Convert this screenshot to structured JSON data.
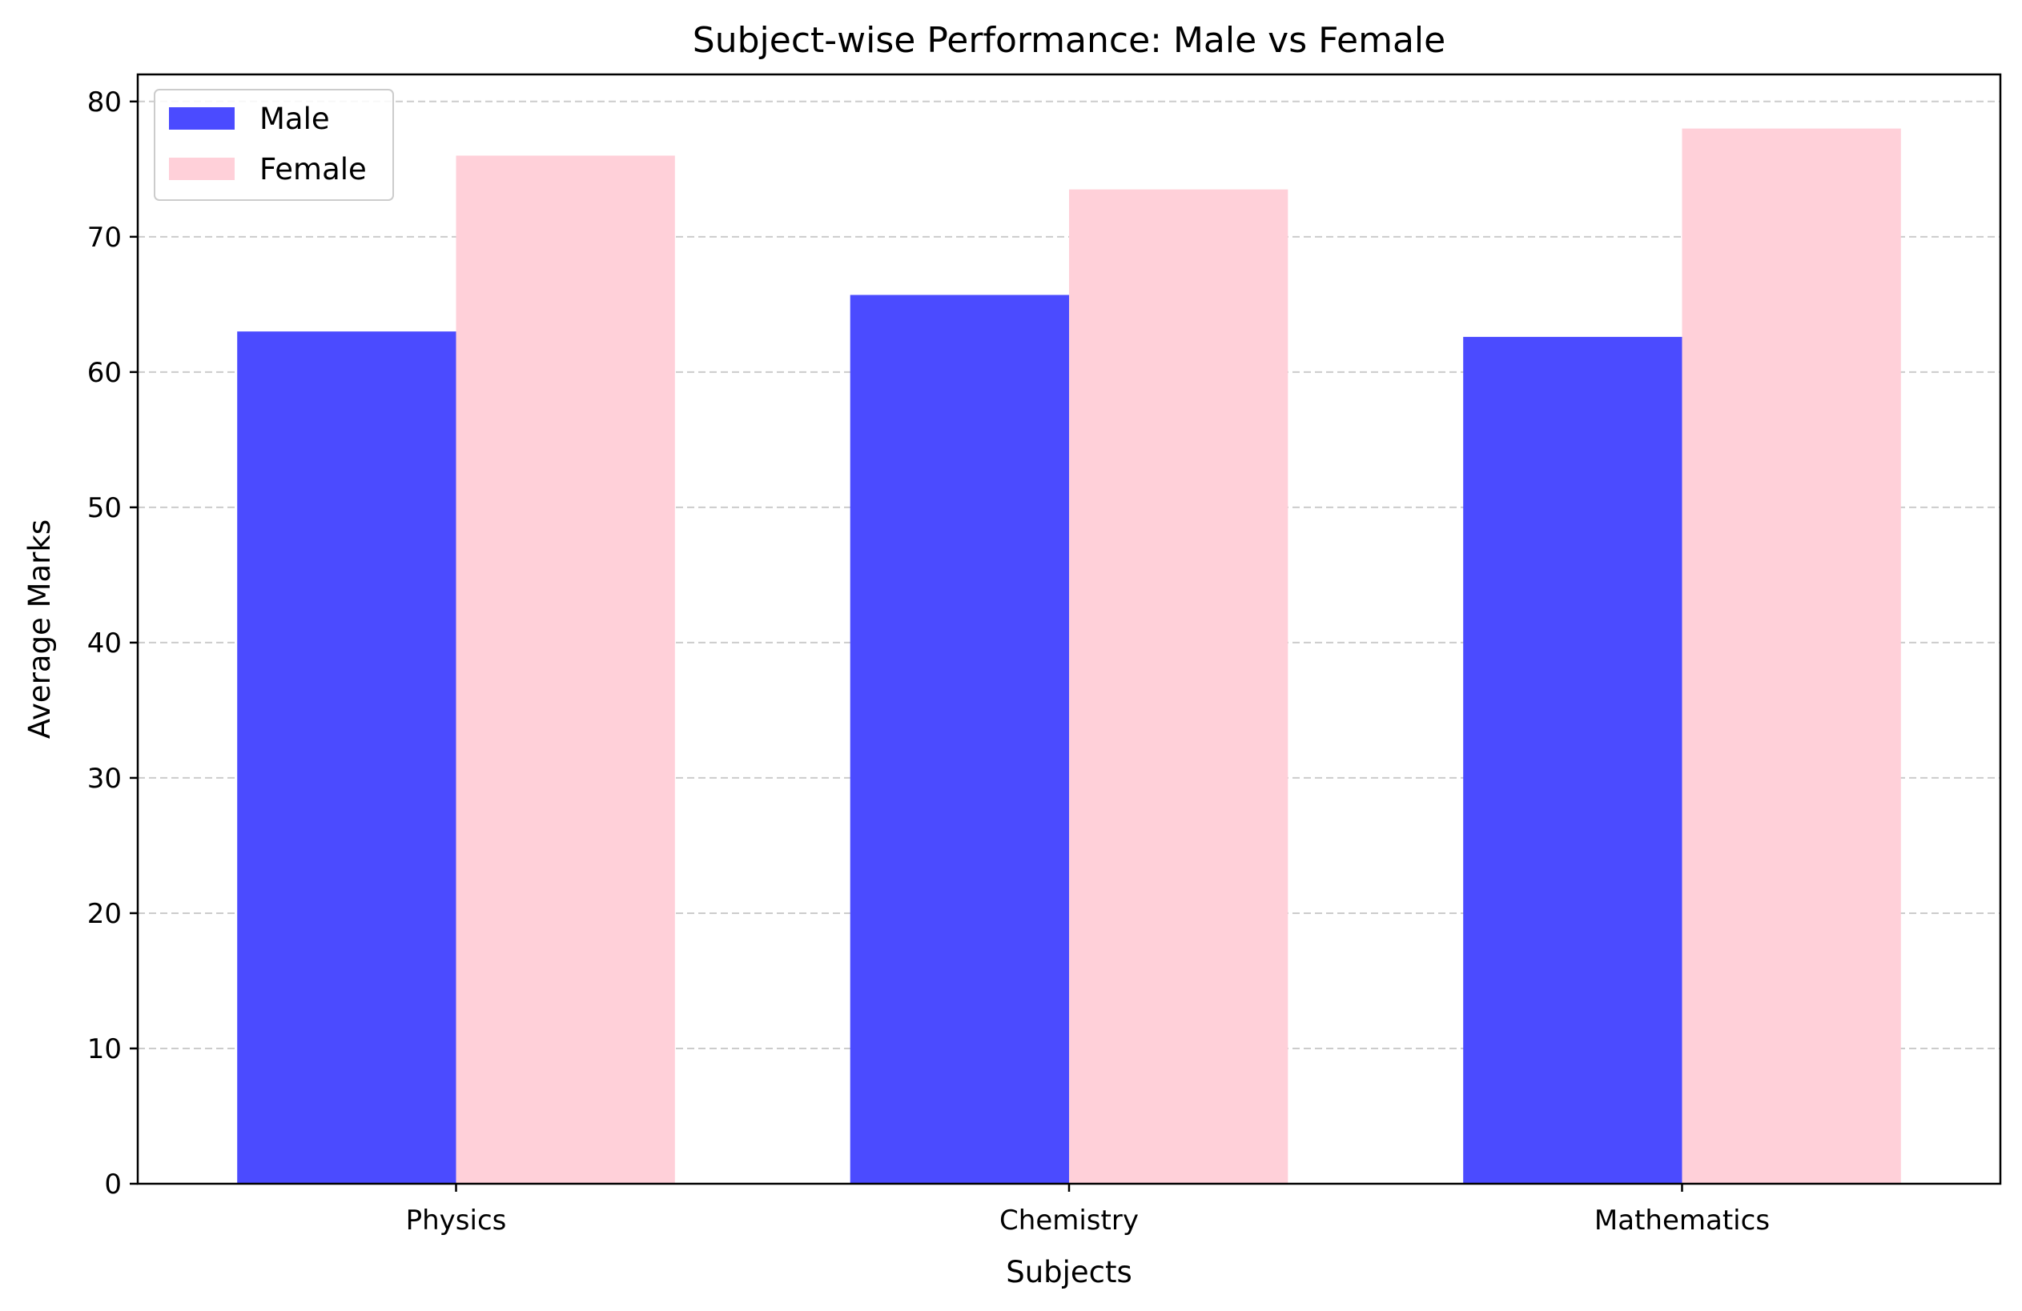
{
  "chart_data": {
    "type": "bar",
    "title": "Subject-wise Performance: Male vs Female",
    "xlabel": "Subjects",
    "ylabel": "Average Marks",
    "categories": [
      "Physics",
      "Chemistry",
      "Mathematics"
    ],
    "series": [
      {
        "name": "Male",
        "values": [
          63.0,
          65.7,
          62.6
        ],
        "color": "#4b4bff"
      },
      {
        "name": "Female",
        "values": [
          76.0,
          73.5,
          78.0
        ],
        "color": "#ffd0d9"
      }
    ],
    "ylim": [
      0,
      82
    ],
    "yticks": [
      0,
      10,
      20,
      30,
      40,
      50,
      60,
      70,
      80
    ],
    "grid": {
      "axis": "y",
      "style": "dashed",
      "color": "#cccccc"
    },
    "legend": {
      "position": "top-left"
    }
  }
}
